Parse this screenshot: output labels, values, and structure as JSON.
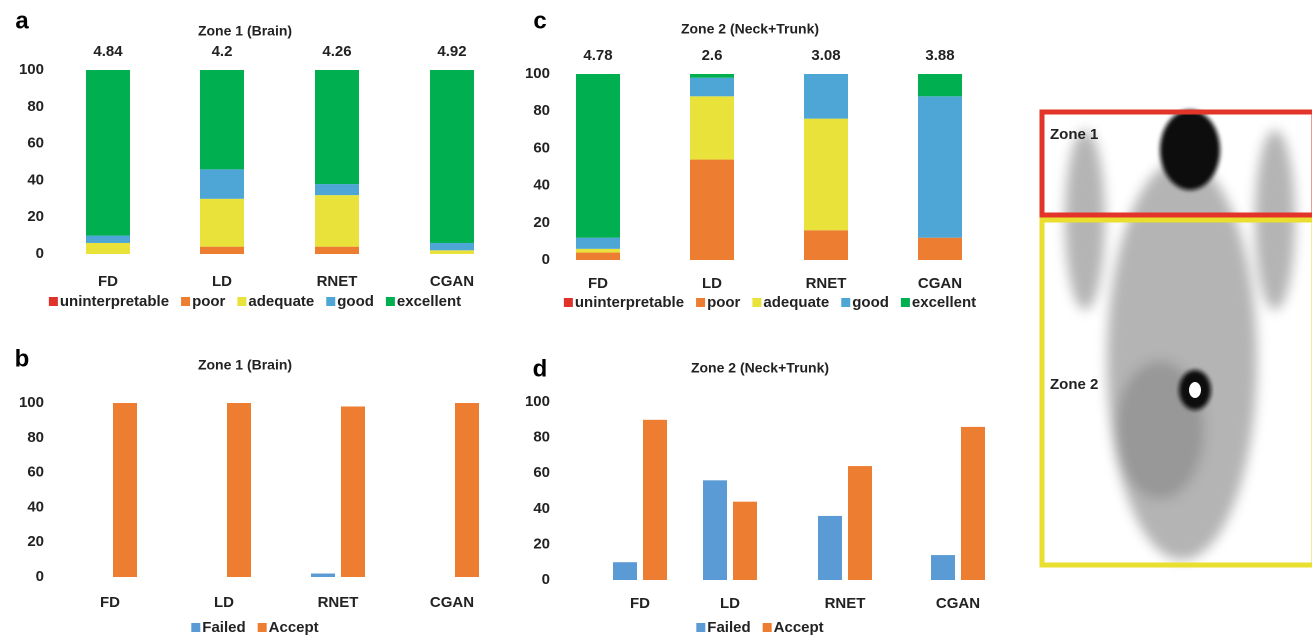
{
  "chart_data": [
    {
      "type": "stacked_bar",
      "panel": "a",
      "title": "Zone 1 (Brain)",
      "categories": [
        "FD",
        "LD",
        "RNET",
        "CGAN"
      ],
      "annotations": [
        4.84,
        4.2,
        4.26,
        4.92
      ],
      "series": [
        {
          "name": "uninterpretable",
          "color": "#e0312b",
          "values": [
            0,
            0,
            0,
            0
          ]
        },
        {
          "name": "poor",
          "color": "#ed7d31",
          "values": [
            0,
            4,
            4,
            0
          ]
        },
        {
          "name": "adequate",
          "color": "#e9e23a",
          "values": [
            6,
            26,
            28,
            2
          ]
        },
        {
          "name": "good",
          "color": "#4ea6d6",
          "values": [
            4,
            16,
            6,
            4
          ]
        },
        {
          "name": "excellent",
          "color": "#00b050",
          "values": [
            90,
            54,
            62,
            94
          ]
        }
      ],
      "ylim": [
        0,
        100
      ],
      "yticks": [
        0,
        20,
        40,
        60,
        80,
        100
      ]
    },
    {
      "type": "grouped_bar",
      "panel": "b",
      "title": "Zone 1 (Brain)",
      "categories": [
        "FD",
        "LD",
        "RNET",
        "CGAN"
      ],
      "series": [
        {
          "name": "Failed",
          "color": "#5b9bd5",
          "values": [
            0,
            0,
            2,
            0
          ]
        },
        {
          "name": "Accept",
          "color": "#ed7d31",
          "values": [
            100,
            100,
            98,
            100
          ]
        }
      ],
      "ylim": [
        0,
        100
      ],
      "yticks": [
        0,
        20,
        40,
        60,
        80,
        100
      ]
    },
    {
      "type": "stacked_bar",
      "panel": "c",
      "title": "Zone 2 (Neck+Trunk)",
      "categories": [
        "FD",
        "LD",
        "RNET",
        "CGAN"
      ],
      "annotations": [
        4.78,
        2.6,
        3.08,
        3.88
      ],
      "series": [
        {
          "name": "uninterpretable",
          "color": "#e0312b",
          "values": [
            0,
            0,
            0,
            0
          ]
        },
        {
          "name": "poor",
          "color": "#ed7d31",
          "values": [
            4,
            54,
            16,
            12
          ]
        },
        {
          "name": "adequate",
          "color": "#e9e23a",
          "values": [
            2,
            34,
            60,
            0
          ]
        },
        {
          "name": "good",
          "color": "#4ea6d6",
          "values": [
            6,
            10,
            24,
            76
          ]
        },
        {
          "name": "excellent",
          "color": "#00b050",
          "values": [
            88,
            2,
            0,
            12
          ]
        }
      ],
      "ylim": [
        0,
        100
      ],
      "yticks": [
        0,
        20,
        40,
        60,
        80,
        100
      ]
    },
    {
      "type": "grouped_bar",
      "panel": "d",
      "title": "Zone 2 (Neck+Trunk)",
      "categories": [
        "FD",
        "LD",
        "RNET",
        "CGAN"
      ],
      "series": [
        {
          "name": "Failed",
          "color": "#5b9bd5",
          "values": [
            10,
            56,
            36,
            14
          ]
        },
        {
          "name": "Accept",
          "color": "#ed7d31",
          "values": [
            90,
            44,
            64,
            86
          ]
        }
      ],
      "ylim": [
        0,
        100
      ],
      "yticks": [
        0,
        20,
        40,
        60,
        80,
        100
      ]
    }
  ],
  "image": {
    "labels": [
      "Zone 1",
      "Zone 2"
    ]
  }
}
